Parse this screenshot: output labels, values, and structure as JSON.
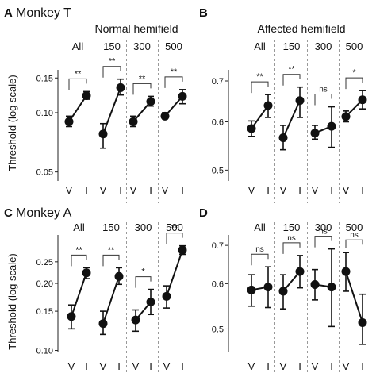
{
  "figure": {
    "ylabel": "Threshold (log scale)",
    "section_top": {
      "letter": "A",
      "title": "Monkey T"
    },
    "section_bottom": {
      "letter": "C",
      "title": "Monkey A"
    },
    "group_labels": [
      "All",
      "150",
      "300",
      "500"
    ],
    "x_labels": [
      "V",
      "I"
    ]
  },
  "chart_data": [
    {
      "type": "line",
      "panel": "A",
      "title": "Normal hemifield",
      "ylabel": "Threshold (log scale)",
      "yscale": "log",
      "ylim": [
        0.045,
        0.165
      ],
      "yticks": [
        0.05,
        0.1,
        0.15
      ],
      "ytick_labels": [
        "0.05",
        "0.10",
        "0.15"
      ],
      "categories": [
        "All",
        "150",
        "300",
        "500"
      ],
      "x": [
        "V",
        "I"
      ],
      "series": [
        {
          "values": [
            0.09,
            0.122
          ],
          "err_low": [
            0.085,
            0.117
          ],
          "err_high": [
            0.096,
            0.128
          ],
          "sig": "**"
        },
        {
          "values": [
            0.078,
            0.134
          ],
          "err_low": [
            0.066,
            0.123
          ],
          "err_high": [
            0.088,
            0.148
          ],
          "sig": "**"
        },
        {
          "values": [
            0.09,
            0.114
          ],
          "err_low": [
            0.085,
            0.108
          ],
          "err_high": [
            0.096,
            0.121
          ],
          "sig": "**"
        },
        {
          "values": [
            0.096,
            0.121
          ],
          "err_low": [
            0.093,
            0.111
          ],
          "err_high": [
            0.1,
            0.131
          ],
          "sig": "**"
        }
      ]
    },
    {
      "type": "line",
      "panel": "B",
      "title": "Affected hemifield",
      "ylabel": "",
      "yscale": "log",
      "ylim": [
        0.48,
        0.73
      ],
      "yticks": [
        0.5,
        0.6,
        0.7
      ],
      "ytick_labels": [
        "0.5",
        "0.6",
        "0.7"
      ],
      "categories": [
        "All",
        "150",
        "300",
        "500"
      ],
      "x": [
        "V",
        "I"
      ],
      "series": [
        {
          "values": [
            0.585,
            0.638
          ],
          "err_low": [
            0.568,
            0.61
          ],
          "err_high": [
            0.602,
            0.665
          ],
          "sig": "**"
        },
        {
          "values": [
            0.565,
            0.65
          ],
          "err_low": [
            0.54,
            0.61
          ],
          "err_high": [
            0.592,
            0.684
          ],
          "sig": "**"
        },
        {
          "values": [
            0.575,
            0.59
          ],
          "err_low": [
            0.562,
            0.545
          ],
          "err_high": [
            0.592,
            0.635
          ],
          "sig": "ns"
        },
        {
          "values": [
            0.612,
            0.652
          ],
          "err_low": [
            0.6,
            0.63
          ],
          "err_high": [
            0.625,
            0.675
          ],
          "sig": "*"
        }
      ]
    },
    {
      "type": "line",
      "panel": "C",
      "title": "",
      "ylabel": "Threshold (log scale)",
      "yscale": "log",
      "ylim": [
        0.098,
        0.33
      ],
      "yticks": [
        0.1,
        0.15,
        0.2,
        0.25
      ],
      "ytick_labels": [
        "0.10",
        "0.15",
        "0.20",
        "0.25"
      ],
      "categories": [
        "All",
        "150",
        "300",
        "500"
      ],
      "x": [
        "V",
        "I"
      ],
      "series": [
        {
          "values": [
            0.142,
            0.223
          ],
          "err_low": [
            0.125,
            0.21
          ],
          "err_high": [
            0.16,
            0.235
          ],
          "sig": "**"
        },
        {
          "values": [
            0.132,
            0.215
          ],
          "err_low": [
            0.118,
            0.198
          ],
          "err_high": [
            0.15,
            0.235
          ],
          "sig": "**"
        },
        {
          "values": [
            0.137,
            0.165
          ],
          "err_low": [
            0.122,
            0.145
          ],
          "err_high": [
            0.152,
            0.188
          ],
          "sig": "*"
        },
        {
          "values": [
            0.175,
            0.282
          ],
          "err_low": [
            0.155,
            0.27
          ],
          "err_high": [
            0.195,
            0.295
          ],
          "sig": "**"
        }
      ]
    },
    {
      "type": "line",
      "panel": "D",
      "title": "",
      "ylabel": "",
      "yscale": "log",
      "ylim": [
        0.455,
        0.73
      ],
      "yticks": [
        0.5,
        0.6,
        0.7
      ],
      "ytick_labels": [
        "0.5",
        "0.6",
        "0.7"
      ],
      "categories": [
        "All",
        "150",
        "300",
        "500"
      ],
      "x": [
        "V",
        "I"
      ],
      "series": [
        {
          "values": [
            0.585,
            0.592
          ],
          "err_low": [
            0.548,
            0.545
          ],
          "err_high": [
            0.622,
            0.642
          ],
          "sig": "ns"
        },
        {
          "values": [
            0.582,
            0.63
          ],
          "err_low": [
            0.542,
            0.59
          ],
          "err_high": [
            0.622,
            0.672
          ],
          "sig": "ns"
        },
        {
          "values": [
            0.598,
            0.592
          ],
          "err_low": [
            0.562,
            0.505
          ],
          "err_high": [
            0.635,
            0.69
          ],
          "sig": "ns"
        },
        {
          "values": [
            0.63,
            0.513
          ],
          "err_low": [
            0.582,
            0.47
          ],
          "err_high": [
            0.68,
            0.575
          ],
          "sig": "ns"
        }
      ]
    }
  ]
}
